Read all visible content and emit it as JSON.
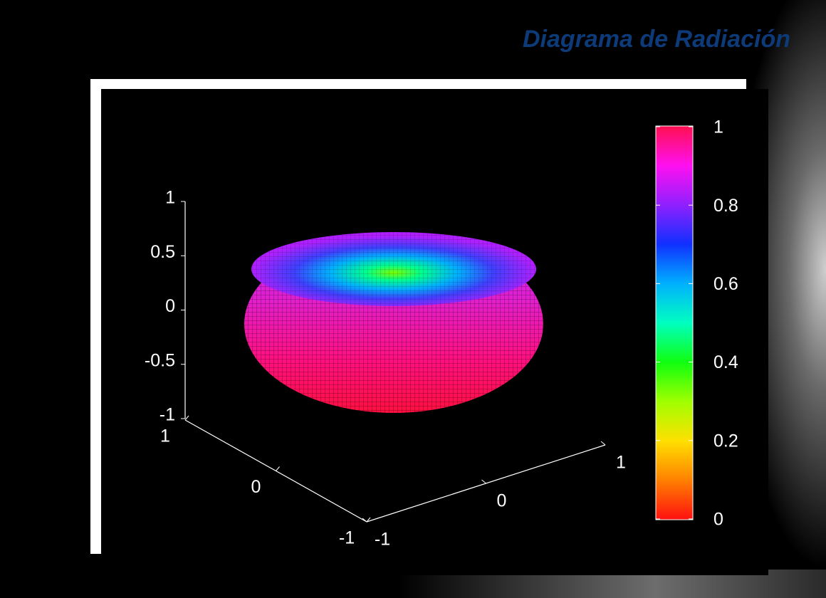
{
  "chart_data": {
    "type": "surface",
    "title": "Diagrama de Radiación",
    "xlim": [
      -1,
      1
    ],
    "xticks": [
      1,
      0,
      -1
    ],
    "ylim": [
      -1,
      1
    ],
    "yticks": [
      -1,
      0,
      1
    ],
    "zlim": [
      -1,
      1
    ],
    "zticks": [
      1,
      0.5,
      0,
      -0.5,
      -1
    ],
    "colorbar": {
      "lim": [
        0,
        1
      ],
      "ticks": [
        1,
        0.8,
        0.6,
        0.4,
        0.2,
        0
      ]
    }
  }
}
